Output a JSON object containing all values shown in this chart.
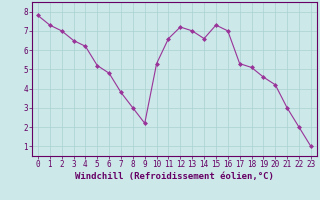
{
  "x": [
    0,
    1,
    2,
    3,
    4,
    5,
    6,
    7,
    8,
    9,
    10,
    11,
    12,
    13,
    14,
    15,
    16,
    17,
    18,
    19,
    20,
    21,
    22,
    23
  ],
  "y": [
    7.8,
    7.3,
    7.0,
    6.5,
    6.2,
    5.2,
    4.8,
    3.8,
    3.0,
    2.2,
    5.3,
    6.6,
    7.2,
    7.0,
    6.6,
    7.3,
    7.0,
    5.3,
    5.1,
    4.6,
    4.2,
    3.0,
    2.0,
    1.0
  ],
  "line_color": "#993399",
  "marker": "D",
  "marker_size": 2,
  "xlabel": "Windchill (Refroidissement éolien,°C)",
  "xlim_min": -0.5,
  "xlim_max": 23.5,
  "ylim_min": 0.5,
  "ylim_max": 8.5,
  "xtick_labels": [
    "0",
    "1",
    "2",
    "3",
    "4",
    "5",
    "6",
    "7",
    "8",
    "9",
    "10",
    "11",
    "12",
    "13",
    "14",
    "15",
    "16",
    "17",
    "18",
    "19",
    "20",
    "21",
    "22",
    "23"
  ],
  "ytick_labels": [
    "1",
    "2",
    "3",
    "4",
    "5",
    "6",
    "7",
    "8"
  ],
  "ytick_values": [
    1,
    2,
    3,
    4,
    5,
    6,
    7,
    8
  ],
  "background_color": "#cce8e8",
  "grid_color": "#aad0d0",
  "label_color": "#660066",
  "tick_color": "#660066",
  "axis_border_color": "#660066",
  "xlabel_fontsize": 6.5,
  "tick_fontsize": 5.5,
  "linewidth": 0.8
}
